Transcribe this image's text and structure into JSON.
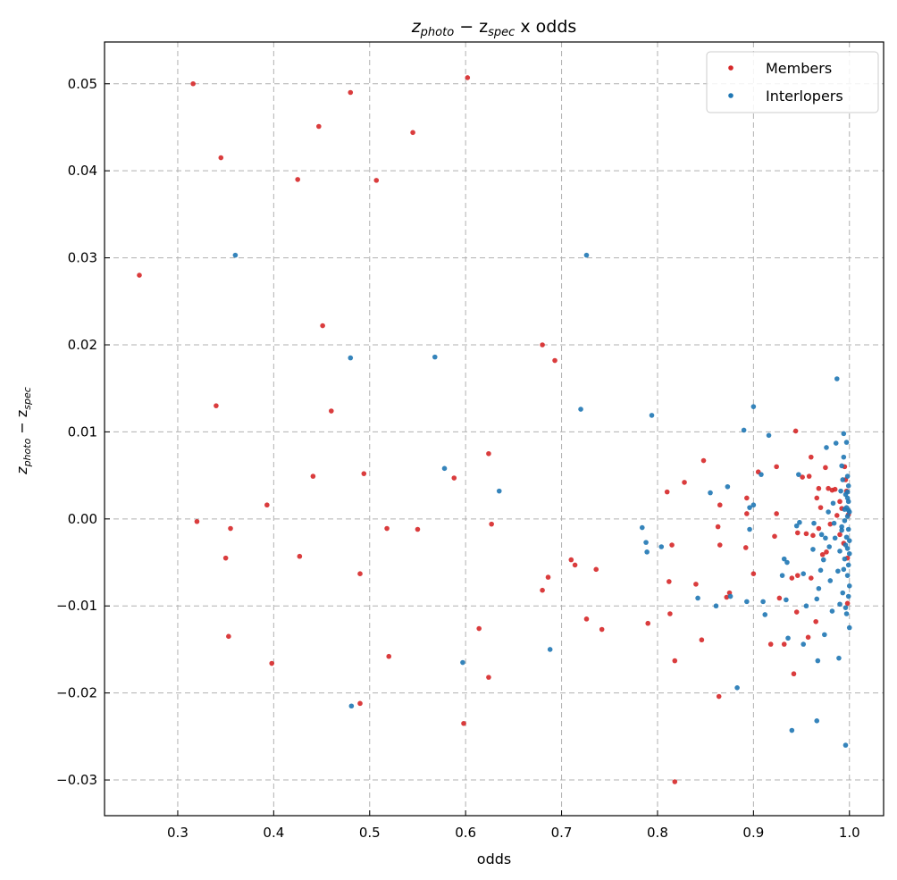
{
  "chart_data": {
    "type": "scatter",
    "title": {
      "main": "z",
      "sub1": "photo",
      "mid": " − z",
      "sub2": "spec",
      "tail": " x odds"
    },
    "xlabel": "odds",
    "ylabel": {
      "main": "z",
      "sub1": "photo",
      "mid": " − z",
      "sub2": "spec"
    },
    "xlim": [
      0.2237,
      1.0356
    ],
    "ylim": [
      -0.0341,
      0.0548
    ],
    "grid": true,
    "legend_position": "top-right",
    "x_ticks": [
      0.3,
      0.4,
      0.5,
      0.6,
      0.7,
      0.8,
      0.9,
      1.0
    ],
    "x_tick_labels": [
      "0.3",
      "0.4",
      "0.5",
      "0.6",
      "0.7",
      "0.8",
      "0.9",
      "1.0"
    ],
    "y_ticks": [
      -0.03,
      -0.02,
      -0.01,
      0.0,
      0.01,
      0.02,
      0.03,
      0.04,
      0.05
    ],
    "y_tick_labels": [
      "−0.03",
      "−0.02",
      "−0.01",
      "0.00",
      "0.01",
      "0.02",
      "0.03",
      "0.04",
      "0.05"
    ],
    "series": [
      {
        "name": "Members",
        "color": "#d62728",
        "points": [
          [
            0.26,
            0.028
          ],
          [
            0.316,
            0.05
          ],
          [
            0.345,
            0.0415
          ],
          [
            0.32,
            -0.0003
          ],
          [
            0.34,
            0.013
          ],
          [
            0.35,
            -0.0045
          ],
          [
            0.355,
            -0.0011
          ],
          [
            0.353,
            -0.0135
          ],
          [
            0.393,
            0.0016
          ],
          [
            0.398,
            -0.0166
          ],
          [
            0.425,
            0.039
          ],
          [
            0.427,
            -0.0043
          ],
          [
            0.441,
            0.0049
          ],
          [
            0.447,
            0.0451
          ],
          [
            0.451,
            0.0222
          ],
          [
            0.46,
            0.0124
          ],
          [
            0.48,
            0.049
          ],
          [
            0.49,
            -0.0063
          ],
          [
            0.49,
            -0.0212
          ],
          [
            0.494,
            0.0052
          ],
          [
            0.507,
            0.0389
          ],
          [
            0.518,
            -0.0011
          ],
          [
            0.52,
            -0.0158
          ],
          [
            0.545,
            0.0444
          ],
          [
            0.55,
            -0.0012
          ],
          [
            0.588,
            0.0047
          ],
          [
            0.598,
            -0.0235
          ],
          [
            0.602,
            0.0507
          ],
          [
            0.614,
            -0.0126
          ],
          [
            0.624,
            0.0075
          ],
          [
            0.624,
            -0.0182
          ],
          [
            0.627,
            -0.0006
          ],
          [
            0.68,
            0.02
          ],
          [
            0.68,
            -0.0082
          ],
          [
            0.686,
            -0.0067
          ],
          [
            0.693,
            0.0182
          ],
          [
            0.71,
            -0.0047
          ],
          [
            0.714,
            -0.0053
          ],
          [
            0.726,
            -0.0115
          ],
          [
            0.736,
            -0.0058
          ],
          [
            0.742,
            -0.0127
          ],
          [
            0.79,
            -0.012
          ],
          [
            0.81,
            0.0031
          ],
          [
            0.812,
            -0.0072
          ],
          [
            0.813,
            -0.0109
          ],
          [
            0.815,
            -0.003
          ],
          [
            0.818,
            -0.0163
          ],
          [
            0.818,
            -0.0302
          ],
          [
            0.828,
            0.0042
          ],
          [
            0.84,
            -0.0075
          ],
          [
            0.846,
            -0.0139
          ],
          [
            0.848,
            0.0067
          ],
          [
            0.863,
            -0.0009
          ],
          [
            0.864,
            -0.0204
          ],
          [
            0.865,
            0.0016
          ],
          [
            0.865,
            -0.003
          ],
          [
            0.872,
            -0.009
          ],
          [
            0.875,
            -0.0085
          ],
          [
            0.892,
            -0.0033
          ],
          [
            0.893,
            0.0024
          ],
          [
            0.893,
            0.0006
          ],
          [
            0.9,
            -0.0063
          ],
          [
            0.905,
            0.0054
          ],
          [
            0.918,
            -0.0144
          ],
          [
            0.922,
            -0.002
          ],
          [
            0.924,
            0.006
          ],
          [
            0.924,
            0.0006
          ],
          [
            0.927,
            -0.0091
          ],
          [
            0.932,
            -0.0144
          ],
          [
            0.94,
            -0.0068
          ],
          [
            0.942,
            -0.0178
          ],
          [
            0.944,
            0.0101
          ],
          [
            0.945,
            -0.0107
          ],
          [
            0.946,
            -0.0065
          ],
          [
            0.946,
            -0.0016
          ],
          [
            0.951,
            0.0048
          ],
          [
            0.955,
            -0.0017
          ],
          [
            0.957,
            -0.0136
          ],
          [
            0.958,
            0.0049
          ],
          [
            0.96,
            0.0071
          ],
          [
            0.96,
            -0.0068
          ],
          [
            0.962,
            -0.0019
          ],
          [
            0.965,
            -0.0118
          ],
          [
            0.966,
            0.0024
          ],
          [
            0.968,
            -0.0011
          ],
          [
            0.968,
            0.0035
          ],
          [
            0.97,
            0.0013
          ],
          [
            0.972,
            -0.0041
          ],
          [
            0.975,
            0.0059
          ],
          [
            0.976,
            -0.0038
          ],
          [
            0.978,
            0.0035
          ],
          [
            0.98,
            -0.0006
          ],
          [
            0.982,
            0.0033
          ],
          [
            0.985,
            0.0034
          ],
          [
            0.987,
            0.0004
          ],
          [
            0.99,
            -0.0018
          ],
          [
            0.99,
            0.002
          ],
          [
            0.992,
            0.0012
          ],
          [
            0.994,
            -0.0028
          ],
          [
            0.996,
            0.0045
          ],
          [
            0.997,
            0.0032
          ],
          [
            0.998,
            -0.0045
          ],
          [
            0.999,
            0.0005
          ],
          [
            0.998,
            -0.0097
          ],
          [
            0.995,
            0.006
          ]
        ]
      },
      {
        "name": "Interlopers",
        "color": "#1f77b4",
        "points": [
          [
            0.36,
            0.0303
          ],
          [
            0.48,
            0.0185
          ],
          [
            0.481,
            -0.0215
          ],
          [
            0.568,
            0.0186
          ],
          [
            0.578,
            0.0058
          ],
          [
            0.597,
            -0.0165
          ],
          [
            0.635,
            0.0032
          ],
          [
            0.688,
            -0.015
          ],
          [
            0.72,
            0.0126
          ],
          [
            0.726,
            0.0303
          ],
          [
            0.784,
            -0.001
          ],
          [
            0.788,
            -0.0027
          ],
          [
            0.789,
            -0.0038
          ],
          [
            0.794,
            0.0119
          ],
          [
            0.804,
            -0.0032
          ],
          [
            0.842,
            -0.0091
          ],
          [
            0.855,
            0.003
          ],
          [
            0.861,
            -0.01
          ],
          [
            0.873,
            0.0037
          ],
          [
            0.876,
            -0.0089
          ],
          [
            0.883,
            -0.0194
          ],
          [
            0.89,
            0.0102
          ],
          [
            0.893,
            -0.0095
          ],
          [
            0.896,
            0.0013
          ],
          [
            0.896,
            -0.0012
          ],
          [
            0.9,
            0.0016
          ],
          [
            0.9,
            0.0129
          ],
          [
            0.908,
            0.0051
          ],
          [
            0.91,
            -0.0095
          ],
          [
            0.912,
            -0.011
          ],
          [
            0.916,
            0.0096
          ],
          [
            0.93,
            -0.0065
          ],
          [
            0.932,
            -0.0046
          ],
          [
            0.934,
            -0.0093
          ],
          [
            0.935,
            -0.005
          ],
          [
            0.936,
            -0.0137
          ],
          [
            0.94,
            -0.0243
          ],
          [
            0.945,
            -0.0008
          ],
          [
            0.947,
            0.0051
          ],
          [
            0.948,
            -0.0004
          ],
          [
            0.952,
            -0.0063
          ],
          [
            0.952,
            -0.0144
          ],
          [
            0.955,
            -0.01
          ],
          [
            0.962,
            -0.0035
          ],
          [
            0.963,
            -0.0005
          ],
          [
            0.966,
            -0.0092
          ],
          [
            0.966,
            -0.0232
          ],
          [
            0.967,
            -0.0163
          ],
          [
            0.968,
            -0.008
          ],
          [
            0.97,
            -0.0059
          ],
          [
            0.971,
            -0.0018
          ],
          [
            0.973,
            -0.0047
          ],
          [
            0.974,
            -0.0133
          ],
          [
            0.975,
            -0.0022
          ],
          [
            0.976,
            0.0082
          ],
          [
            0.978,
            0.0008
          ],
          [
            0.979,
            -0.0032
          ],
          [
            0.98,
            -0.0071
          ],
          [
            0.982,
            -0.0106
          ],
          [
            0.983,
            0.0018
          ],
          [
            0.984,
            -0.0005
          ],
          [
            0.985,
            -0.0022
          ],
          [
            0.986,
            0.0087
          ],
          [
            0.987,
            0.0161
          ],
          [
            0.988,
            -0.006
          ],
          [
            0.989,
            -0.016
          ],
          [
            0.99,
            -0.0098
          ],
          [
            0.99,
            -0.0037
          ],
          [
            0.991,
            0.0032
          ],
          [
            0.992,
            -0.0013
          ],
          [
            0.992,
            0.0061
          ],
          [
            0.993,
            -0.0085
          ],
          [
            0.994,
            0.0071
          ],
          [
            0.994,
            0.0098
          ],
          [
            0.995,
            -0.0002
          ],
          [
            0.995,
            -0.0046
          ],
          [
            0.996,
            0.0028
          ],
          [
            0.996,
            -0.0102
          ],
          [
            0.996,
            -0.026
          ],
          [
            0.997,
            0.0088
          ],
          [
            0.997,
            -0.0021
          ],
          [
            0.997,
            -0.0109
          ],
          [
            0.998,
            0.0003
          ],
          [
            0.998,
            0.0031
          ],
          [
            0.998,
            -0.0065
          ],
          [
            0.998,
            -0.0034
          ],
          [
            0.998,
            0.0049
          ],
          [
            0.999,
            0.002
          ],
          [
            0.999,
            -0.0012
          ],
          [
            0.999,
            -0.0053
          ],
          [
            0.999,
            0.0038
          ],
          [
            1.0,
            0.0008
          ],
          [
            1.0,
            -0.0025
          ],
          [
            1.0,
            -0.0077
          ],
          [
            1.0,
            -0.0125
          ],
          [
            0.999,
            0.001
          ],
          [
            1.0,
            -0.004
          ],
          [
            0.999,
            -0.0089
          ],
          [
            0.998,
            0.0024
          ],
          [
            0.997,
            0.0013
          ],
          [
            0.996,
            -0.003
          ],
          [
            0.995,
            0.0011
          ],
          [
            0.994,
            -0.0058
          ],
          [
            0.993,
            0.0045
          ],
          [
            0.992,
            -0.0009
          ]
        ]
      }
    ]
  }
}
